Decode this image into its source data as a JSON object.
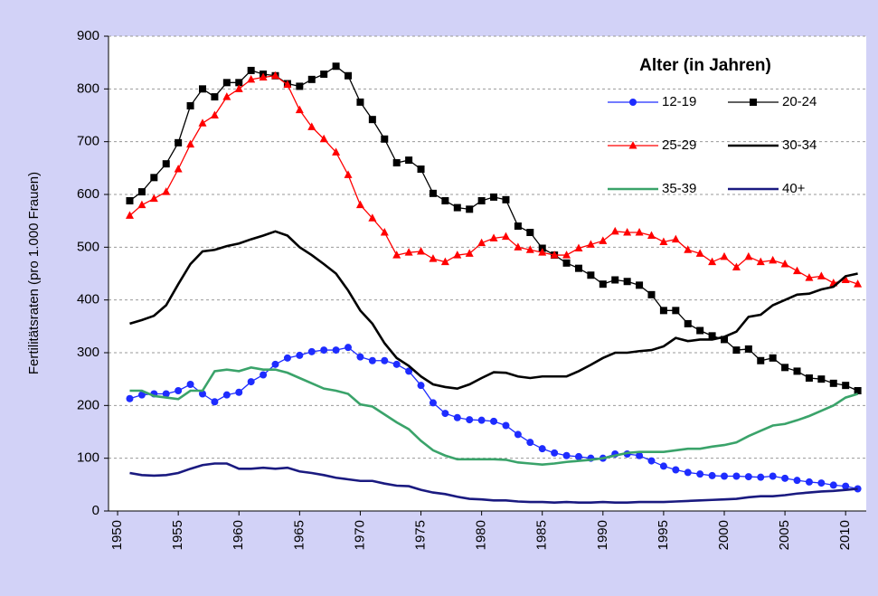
{
  "chart_data": {
    "type": "line",
    "ylabel": "Fertilitätsraten (pro 1.000 Frauen)",
    "legend_title": "Alter (in Jahren)",
    "legend": "upper right",
    "grid": true,
    "xlim": [
      1949.25,
      2011.7
    ],
    "ylim": [
      0,
      900
    ],
    "xticks": [
      1950,
      1955,
      1960,
      1965,
      1970,
      1975,
      1980,
      1985,
      1990,
      1995,
      2000,
      2005,
      2010
    ],
    "yticks": [
      0,
      100,
      200,
      300,
      400,
      500,
      600,
      700,
      800,
      900
    ],
    "x": [
      1951,
      1952,
      1953,
      1954,
      1955,
      1956,
      1957,
      1958,
      1959,
      1960,
      1961,
      1962,
      1963,
      1964,
      1965,
      1966,
      1967,
      1968,
      1969,
      1970,
      1971,
      1972,
      1973,
      1974,
      1975,
      1976,
      1977,
      1978,
      1979,
      1980,
      1981,
      1982,
      1983,
      1984,
      1985,
      1986,
      1987,
      1988,
      1989,
      1990,
      1991,
      1992,
      1993,
      1994,
      1995,
      1996,
      1997,
      1998,
      1999,
      2000,
      2001,
      2002,
      2003,
      2004,
      2005,
      2006,
      2007,
      2008,
      2009,
      2010,
      2011
    ],
    "series": [
      {
        "name": "12-19",
        "color": "#1e2cff",
        "marker": "circle",
        "values": [
          213,
          220,
          222,
          222,
          228,
          240,
          222,
          207,
          220,
          225,
          245,
          258,
          278,
          290,
          295,
          302,
          305,
          305,
          310,
          292,
          285,
          285,
          278,
          265,
          238,
          205,
          185,
          177,
          173,
          172,
          170,
          162,
          145,
          130,
          118,
          110,
          105,
          103,
          100,
          100,
          108,
          108,
          105,
          95,
          85,
          78,
          73,
          70,
          67,
          66,
          66,
          65,
          64,
          66,
          62,
          58,
          55,
          53,
          49,
          47,
          42
        ]
      },
      {
        "name": "20-24",
        "color": "#000000",
        "marker": "square",
        "values": [
          588,
          605,
          632,
          658,
          698,
          768,
          800,
          785,
          812,
          812,
          835,
          828,
          825,
          810,
          805,
          818,
          828,
          843,
          825,
          775,
          742,
          705,
          660,
          665,
          648,
          602,
          588,
          575,
          572,
          588,
          595,
          590,
          540,
          528,
          498,
          485,
          470,
          460,
          447,
          430,
          438,
          435,
          428,
          410,
          380,
          380,
          355,
          342,
          332,
          325,
          305,
          307,
          285,
          290,
          272,
          265,
          252,
          250,
          242,
          238,
          228
        ]
      },
      {
        "name": "25-29",
        "color": "#ff0000",
        "marker": "triangle",
        "values": [
          560,
          580,
          592,
          605,
          648,
          695,
          735,
          750,
          785,
          800,
          818,
          822,
          825,
          808,
          760,
          728,
          705,
          680,
          637,
          580,
          555,
          528,
          485,
          490,
          492,
          478,
          472,
          485,
          488,
          508,
          517,
          520,
          500,
          495,
          490,
          485,
          485,
          498,
          505,
          512,
          530,
          528,
          528,
          522,
          510,
          515,
          495,
          488,
          472,
          482,
          462,
          482,
          472,
          475,
          468,
          455,
          442,
          445,
          432,
          438,
          430
        ]
      },
      {
        "name": "30-34",
        "color": "#000000",
        "marker": null,
        "values": [
          355,
          362,
          370,
          390,
          430,
          468,
          492,
          495,
          502,
          507,
          515,
          522,
          530,
          522,
          500,
          485,
          468,
          450,
          418,
          380,
          355,
          318,
          290,
          275,
          255,
          240,
          235,
          232,
          240,
          252,
          263,
          262,
          255,
          252,
          255,
          255,
          255,
          265,
          277,
          290,
          300,
          300,
          303,
          305,
          312,
          328,
          322,
          325,
          325,
          330,
          340,
          368,
          372,
          390,
          400,
          410,
          412,
          420,
          425,
          445,
          450
        ]
      },
      {
        "name": "35-39",
        "color": "#3aa36a",
        "marker": null,
        "values": [
          228,
          228,
          218,
          215,
          212,
          228,
          228,
          265,
          268,
          265,
          272,
          268,
          268,
          262,
          252,
          242,
          232,
          228,
          222,
          202,
          198,
          183,
          168,
          155,
          133,
          115,
          105,
          98,
          98,
          98,
          98,
          97,
          92,
          90,
          88,
          90,
          93,
          95,
          97,
          100,
          105,
          110,
          112,
          112,
          112,
          115,
          118,
          118,
          122,
          125,
          130,
          142,
          152,
          162,
          165,
          172,
          180,
          190,
          200,
          215,
          222
        ]
      },
      {
        "name": "40+",
        "color": "#1a1a80",
        "marker": null,
        "values": [
          72,
          68,
          67,
          68,
          72,
          80,
          87,
          90,
          90,
          80,
          80,
          82,
          80,
          82,
          75,
          72,
          68,
          63,
          60,
          57,
          57,
          52,
          48,
          47,
          40,
          35,
          32,
          27,
          23,
          22,
          20,
          20,
          18,
          17,
          17,
          16,
          17,
          16,
          16,
          17,
          16,
          16,
          17,
          17,
          17,
          18,
          19,
          20,
          21,
          22,
          23,
          26,
          28,
          28,
          30,
          33,
          35,
          37,
          38,
          40,
          42
        ]
      }
    ]
  }
}
